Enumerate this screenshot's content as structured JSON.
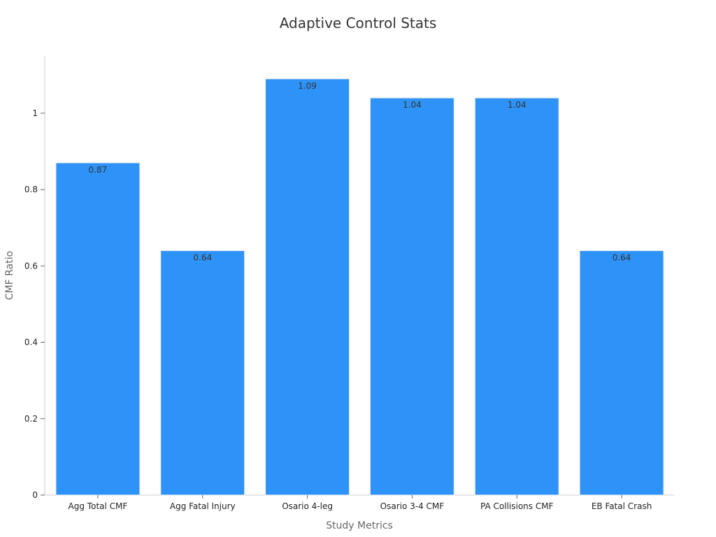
{
  "chart_data": {
    "type": "bar",
    "title": "Adaptive Control Stats",
    "xlabel": "Study Metrics",
    "ylabel": "CMF Ratio",
    "categories": [
      "Agg Total CMF",
      "Agg Fatal Injury",
      "Osario 4-leg",
      "Osario 3-4 CMF",
      "PA Collisions CMF",
      "EB Fatal Crash"
    ],
    "values": [
      0.87,
      0.64,
      1.09,
      1.04,
      1.04,
      0.64
    ],
    "data_labels": [
      "0.87",
      "0.64",
      "1.09",
      "1.04",
      "1.04",
      "0.64"
    ],
    "ylim": [
      0,
      1.15
    ],
    "yticks": [
      0,
      0.2,
      0.4,
      0.6,
      0.8,
      1
    ],
    "ytick_labels": [
      "0",
      "0.2",
      "0.4",
      "0.6",
      "0.8",
      "1"
    ],
    "grid": false,
    "legend": "none",
    "colors": {
      "bar": "#2e93f8"
    }
  }
}
